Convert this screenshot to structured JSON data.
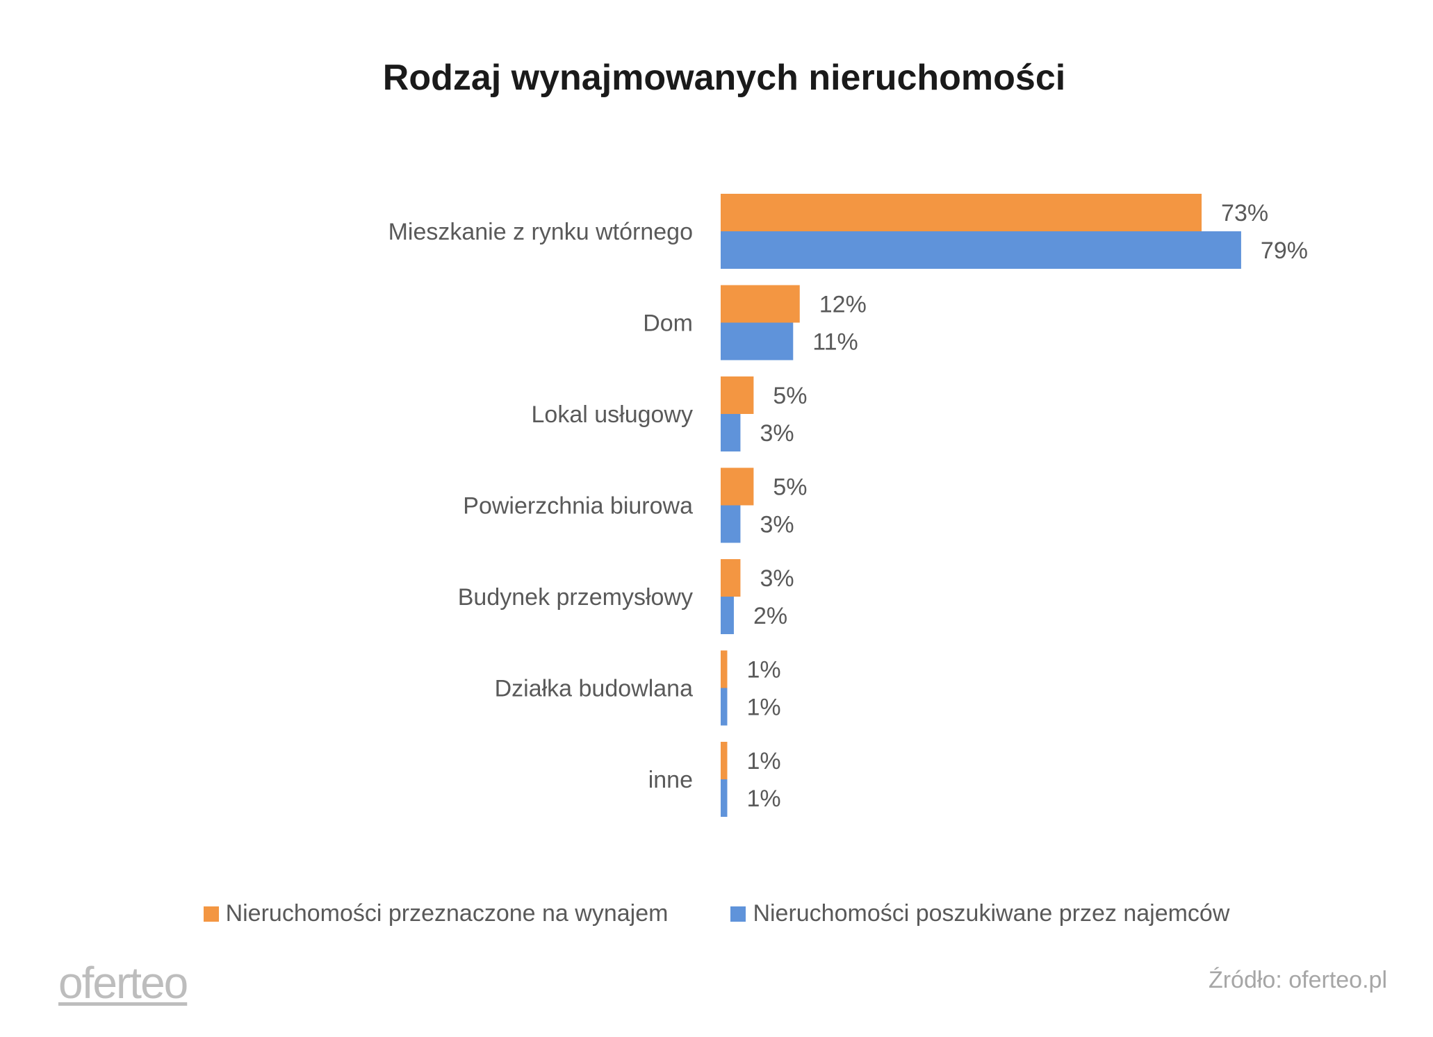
{
  "chart_data": {
    "type": "bar",
    "orientation": "horizontal",
    "title": "Rodzaj wynajmowanych nieruchomości",
    "categories": [
      "Mieszkanie z rynku wtórnego",
      "Dom",
      "Lokal usługowy",
      "Powierzchnia biurowa",
      "Budynek przemysłowy",
      "Działka budowlana",
      "inne"
    ],
    "series": [
      {
        "name": "Nieruchomości przeznaczone na wynajem",
        "color": "#F39642",
        "values": [
          73,
          12,
          5,
          5,
          3,
          1,
          1
        ],
        "labels": [
          "73%",
          "12%",
          "5%",
          "5%",
          "3%",
          "1%",
          "1%"
        ]
      },
      {
        "name": "Nieruchomości poszukiwane przez najemców",
        "color": "#5F93DA",
        "values": [
          79,
          11,
          3,
          3,
          2,
          1,
          1
        ],
        "labels": [
          "79%",
          "11%",
          "3%",
          "3%",
          "2%",
          "1%",
          "1%"
        ]
      }
    ],
    "xlabel": "",
    "ylabel": "",
    "xlim": [
      0,
      100
    ],
    "grid": false,
    "legend": "bottom"
  },
  "footer": {
    "logo": "oferteo",
    "source": "Źródło: oferteo.pl"
  }
}
